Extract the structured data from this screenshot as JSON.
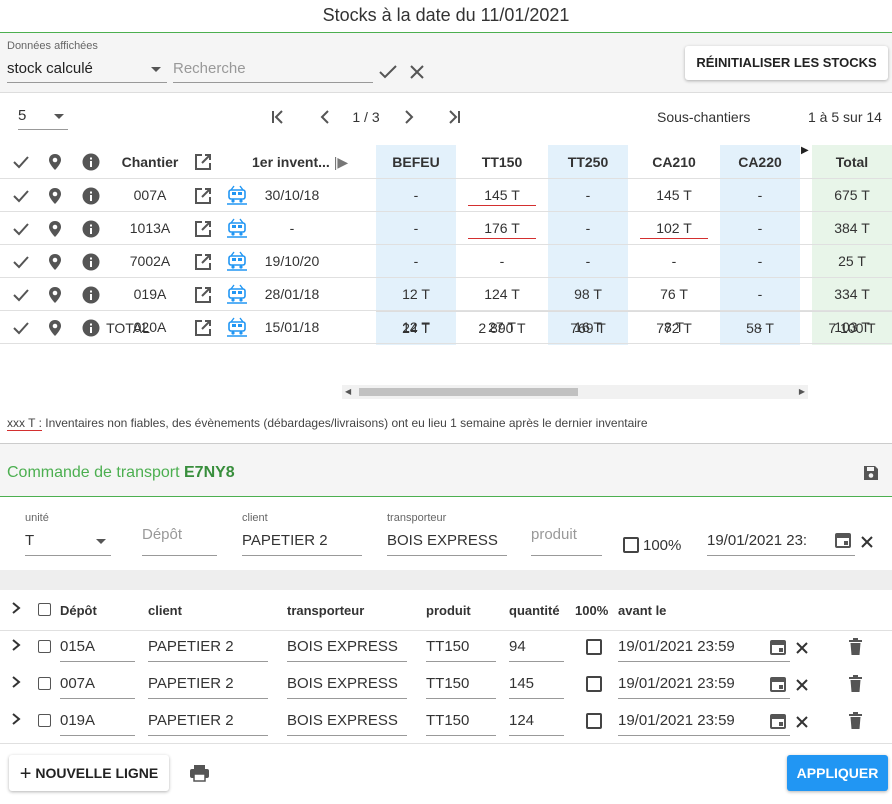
{
  "title": "Stocks à la date du 11/01/2021",
  "filters": {
    "displayed_label": "Données affichées",
    "displayed_value": "stock calculé",
    "search_placeholder": "Recherche",
    "reset_label": "RÉINITIALISER LES STOCKS"
  },
  "pager": {
    "page_size": "5",
    "page_indicator": "1 / 3",
    "subsites_label": "Sous-chantiers",
    "range_label": "1 à 5 sur 14"
  },
  "stock_table": {
    "headers": {
      "chantier": "Chantier",
      "first_inventory": "1er invent...",
      "cols": [
        "BEFEU",
        "TT150",
        "TT250",
        "CA210",
        "CA220"
      ],
      "total": "Total"
    },
    "rows": [
      {
        "chantier": "007A",
        "date": "30/10/18",
        "values": [
          "-",
          "145 T",
          "-",
          "145 T",
          "-"
        ],
        "total": "675 T"
      },
      {
        "chantier": "1013A",
        "date": "-",
        "values": [
          "-",
          "176 T",
          "-",
          "102 T",
          "-"
        ],
        "total": "384 T"
      },
      {
        "chantier": "7002A",
        "date": "19/10/20",
        "values": [
          "-",
          "-",
          "-",
          "-",
          "-"
        ],
        "total": "25 T"
      },
      {
        "chantier": "019A",
        "date": "28/01/18",
        "values": [
          "12 T",
          "124 T",
          "98 T",
          "76 T",
          "-"
        ],
        "total": "334 T"
      },
      {
        "chantier": "020A",
        "date": "15/01/18",
        "values": [
          "12 T",
          "27 T",
          "16 T",
          "8 T",
          "-"
        ],
        "total": "103 T"
      }
    ],
    "total_row": {
      "label": "TOTAL",
      "values": [
        "24 T",
        "2 890 T",
        "769 T",
        "772 T",
        "58 T"
      ],
      "total": "7 100 T"
    }
  },
  "legend": {
    "sample": "xxx T :",
    "text": "Inventaires non fiables, des évènements (débardages/livraisons) ont eu lieu 1 semaine après le dernier inventaire"
  },
  "transport": {
    "label": "Commande de transport",
    "code": "E7NY8",
    "form": {
      "unit_label": "unité",
      "unit_value": "T",
      "depot_placeholder": "Dépôt",
      "client_label": "client",
      "client_value": "PAPETIER 2",
      "carrier_label": "transporteur",
      "carrier_value": "BOIS EXPRESS",
      "product_placeholder": "produit",
      "hundred_label": "100%",
      "date_value": "19/01/2021 23:"
    },
    "table_headers": {
      "depot": "Dépôt",
      "client": "client",
      "carrier": "transporteur",
      "product": "produit",
      "quantity": "quantité",
      "hundred": "100%",
      "before": "avant le"
    },
    "lines": [
      {
        "depot": "015A",
        "client": "PAPETIER 2",
        "carrier": "BOIS EXPRESS",
        "product": "TT150",
        "quantity": "94",
        "date": "19/01/2021 23:59"
      },
      {
        "depot": "007A",
        "client": "PAPETIER 2",
        "carrier": "BOIS EXPRESS",
        "product": "TT150",
        "quantity": "145",
        "date": "19/01/2021 23:59"
      },
      {
        "depot": "019A",
        "client": "PAPETIER 2",
        "carrier": "BOIS EXPRESS",
        "product": "TT150",
        "quantity": "124",
        "date": "19/01/2021 23:59"
      }
    ],
    "new_line_label": "NOUVELLE LIGNE",
    "apply_label": "APPLIQUER"
  },
  "colors": {
    "accent_green": "#4caf50",
    "code_green": "#388e3c",
    "apply_blue": "#2196f3",
    "blue_col": "#e3f1fb",
    "green_col": "#e8f5e9",
    "warning_red": "#d32f2f"
  }
}
